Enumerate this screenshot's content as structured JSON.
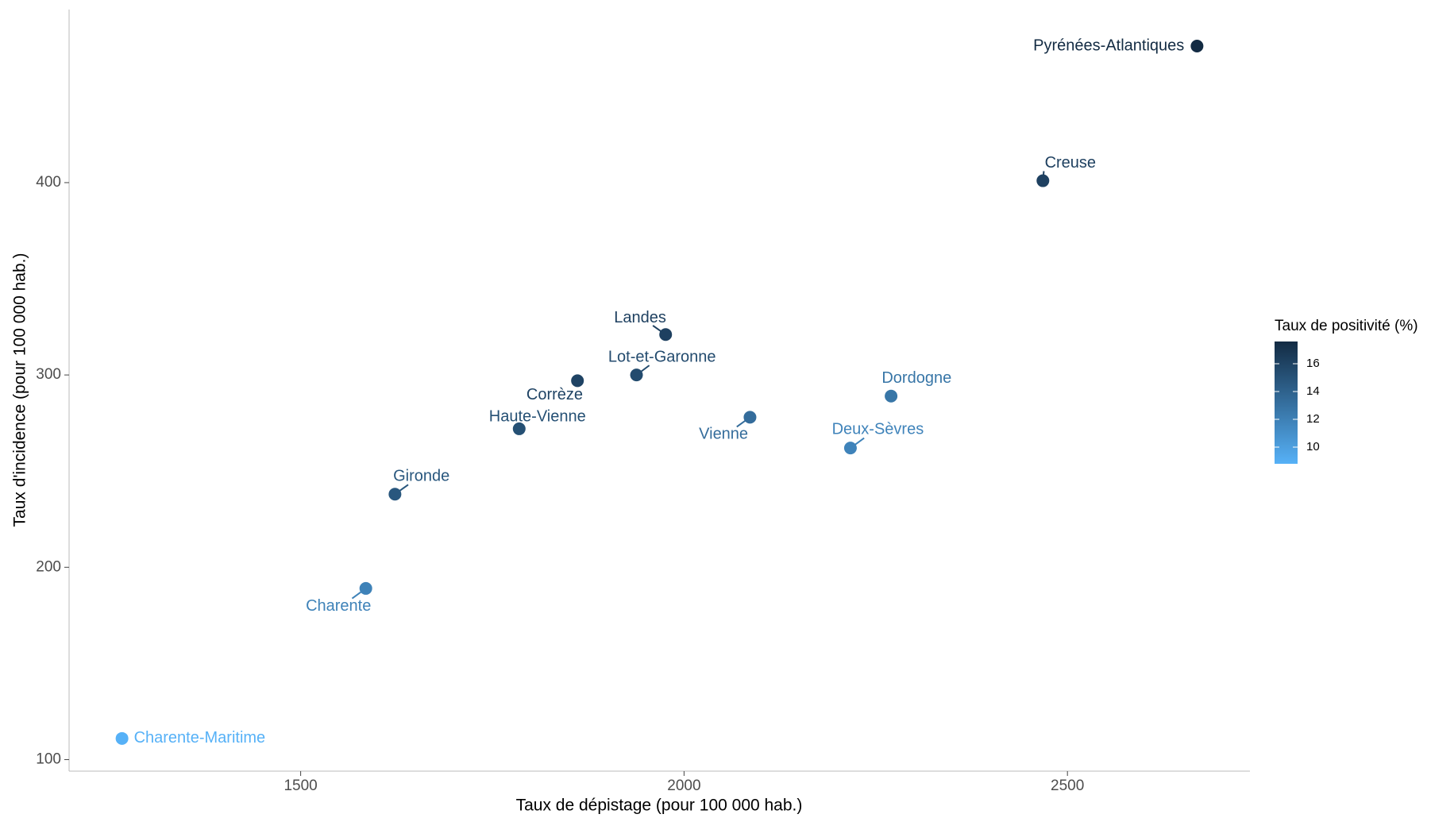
{
  "chart_data": {
    "type": "scatter",
    "x_label": "Taux de dépistage (pour 100 000 hab.)",
    "y_label": "Taux d'incidence (pour 100 000 hab.)",
    "legend_title": "Taux de positivité (%)",
    "labels": [
      "Pyrénées-Atlantiques",
      "Creuse",
      "Landes",
      "Lot-et-Garonne",
      "Corrèze",
      "Haute-Vienne",
      "Vienne",
      "Dordogne",
      "Deux-Sèvres",
      "Gironde",
      "Charente",
      "Charente-Maritime"
    ],
    "x": [
      2669,
      2468,
      1976,
      1938,
      1861,
      1785,
      2086,
      2270,
      2217,
      1623,
      1585,
      1267
    ],
    "y": [
      471,
      401,
      321,
      300,
      297,
      272,
      278,
      289,
      262,
      238,
      189,
      111
    ],
    "positivity": [
      17.6,
      16.2,
      16.2,
      15.5,
      16,
      15.2,
      13.3,
      12.7,
      11.8,
      14.7,
      11.9,
      8.8
    ],
    "color_low": "#56B1F7",
    "color_high": "#132B43",
    "color_lim": [
      8.8,
      17.6
    ],
    "color_ticks": [
      10,
      12,
      14,
      16
    ],
    "xlim": [
      1198,
      2738
    ],
    "xticks": [
      1500,
      2000,
      2500
    ],
    "ylim": [
      94,
      490
    ],
    "yticks": [
      100,
      200,
      300,
      400
    ],
    "grid": false
  }
}
